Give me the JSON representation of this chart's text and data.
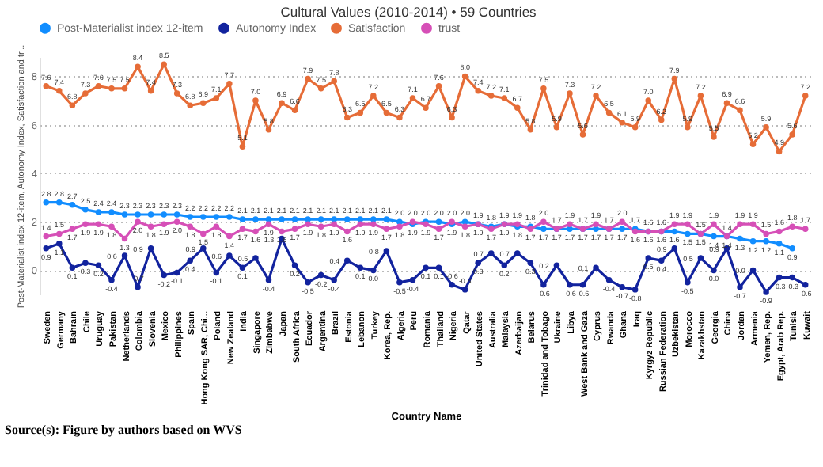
{
  "chart_data": {
    "type": "line",
    "title": "Cultural Values (2010-2014) • 59 Countries",
    "xlabel": "Country Name",
    "ylabel": "Post-Materialist index 12-item, Autonomy Index, Satisfaction and tr...",
    "categories": [
      "Sweden",
      "Germany",
      "Bahrain",
      "Chile",
      "Uruguay",
      "Pakistan",
      "Netherlands",
      "Colombia",
      "Slovenia",
      "Mexico",
      "Philippines",
      "Spain",
      "Hong Kong SAR, Chi...",
      "Poland",
      "New Zealand",
      "India",
      "Singapore",
      "Zimbabwe",
      "Japan",
      "South Africa",
      "Ecuador",
      "Argentina",
      "Brazil",
      "Estonia",
      "Lebanon",
      "Turkey",
      "Korea, Rep.",
      "Algeria",
      "Peru",
      "Romania",
      "Thailand",
      "Nigeria",
      "Qatar",
      "United States",
      "Australia",
      "Malaysia",
      "Azerbaijan",
      "Belarus",
      "Trinidad and Tobago",
      "Ukraine",
      "Libya",
      "West Bank and Gaza",
      "Cyprus",
      "Rwanda",
      "Ghana",
      "Iraq",
      "Kyrgyz Republic",
      "Russian Federation",
      "Uzbekistan",
      "Morocco",
      "Kazakhstan",
      "Georgia",
      "China",
      "Jordan",
      "Armenia",
      "Yemen, Rep.",
      "Egypt, Arab Rep.",
      "Tunisia",
      "Kuwait"
    ],
    "series": [
      {
        "name": "Post-Materialist index 12-item",
        "color": "#118dff",
        "values": [
          2.8,
          2.8,
          2.7,
          2.5,
          2.4,
          2.4,
          2.3,
          2.3,
          2.3,
          2.3,
          2.3,
          2.2,
          2.2,
          2.2,
          2.2,
          2.1,
          2.1,
          2.1,
          2.1,
          2.1,
          2.1,
          2.1,
          2.1,
          2.1,
          2.1,
          2.1,
          2.1,
          2.0,
          1.9,
          2.0,
          2.0,
          1.9,
          2.0,
          1.9,
          1.8,
          1.9,
          1.8,
          1.8,
          1.7,
          1.7,
          1.7,
          1.7,
          1.7,
          1.7,
          1.7,
          1.7,
          1.6,
          1.6,
          1.6,
          1.5,
          1.5,
          1.4,
          1.4,
          1.3,
          1.2,
          1.2,
          1.1,
          0.9,
          null
        ],
        "value_labels": [
          "2.8",
          "2.8",
          "2.7",
          "2.5",
          "2.4",
          "2.4",
          "2.3",
          "2.3",
          "2.3",
          "2.3",
          "2.3",
          "2.2",
          "2.2",
          "2.2",
          "2.2",
          "2.1",
          "2.1",
          "2.1",
          "2.1",
          "2.1",
          "2.1",
          "2.1",
          "2.1",
          "2.1",
          "2.1",
          "2.1",
          "2.1",
          "2.0",
          "1.9",
          "2.0",
          "2.0",
          "1.9",
          "2.0",
          "1.9",
          "1.8",
          "1.9",
          "1.8",
          "1.8",
          "1.7",
          "1.7",
          "1.7",
          "1.7",
          "1.7",
          "1.7",
          "1.7",
          "1.7",
          "1.6",
          "1.6",
          "1.6",
          "1.5",
          "1.5",
          "1.4",
          "1.4",
          "1.3",
          "1.2",
          "1.2",
          "1.1",
          "0.9",
          null
        ]
      },
      {
        "name": "Autonomy Index",
        "color": "#12239e",
        "values": [
          0.9,
          1.1,
          0.1,
          0.3,
          0.2,
          -0.4,
          0.6,
          -0.7,
          0.9,
          -0.2,
          -0.1,
          0.4,
          0.9,
          -0.1,
          0.6,
          0.1,
          0.5,
          -0.4,
          1.3,
          0.2,
          -0.5,
          -0.2,
          -0.4,
          0.4,
          0.1,
          0.0,
          0.8,
          -0.5,
          -0.4,
          0.1,
          0.1,
          -0.6,
          -0.8,
          0.3,
          0.7,
          0.2,
          0.7,
          0.3,
          -0.6,
          0.2,
          -0.6,
          -0.6,
          0.1,
          -0.4,
          -0.7,
          -0.8,
          0.5,
          0.4,
          0.9,
          -0.5,
          0.5,
          0.0,
          0.9,
          -0.7,
          0.0,
          -0.9,
          -0.3,
          -0.3,
          -0.6
        ],
        "value_labels": [
          "0.9",
          "1.1",
          "0.1",
          "0.3",
          "0.2",
          "-0.4",
          "0.6",
          "-0.7",
          "0.9",
          "-0.2",
          "-0.1",
          "0.4",
          "0.9",
          "-0.1",
          "0.6",
          "0.1",
          "0.5",
          "-0.4",
          "1.3",
          "0.2",
          "-0.5",
          "-0.2",
          "-0.4",
          "0.4",
          "0.1",
          "0.0",
          "0.8",
          "-0.5",
          "-0.4",
          "0.1",
          "0.1",
          "-0.6",
          "-0.8",
          "0.3",
          "0.7",
          "0.2",
          "0.7",
          "0.3",
          "-0.6",
          "0.2",
          "-0.6",
          "-0.6",
          "0.1",
          "-0.4",
          "-0.7",
          "-0.8",
          "0.5",
          "0.4",
          "0.9",
          "-0.5",
          "0.5",
          "0.0",
          "0.9",
          "-0.7",
          "0.0",
          "-0.9",
          "-0.3",
          "-0.3",
          "-0.6"
        ]
      },
      {
        "name": "Satisfaction",
        "color": "#e66c37",
        "values": [
          7.6,
          7.4,
          6.8,
          7.3,
          7.6,
          7.5,
          7.5,
          8.4,
          7.4,
          8.5,
          7.3,
          6.8,
          6.9,
          7.1,
          7.7,
          5.1,
          7.0,
          5.8,
          6.9,
          6.6,
          7.9,
          7.5,
          7.8,
          6.3,
          6.5,
          7.2,
          6.5,
          6.3,
          7.1,
          6.7,
          7.6,
          6.3,
          8.0,
          7.4,
          7.2,
          7.1,
          6.7,
          5.8,
          7.5,
          5.9,
          7.3,
          5.6,
          7.2,
          6.5,
          6.1,
          5.9,
          7.0,
          6.2,
          7.9,
          5.9,
          7.2,
          5.5,
          6.9,
          6.6,
          5.2,
          5.9,
          4.9,
          5.6,
          7.2
        ],
        "value_labels": [
          "7.6",
          "7.4",
          "6.8",
          "7.3",
          "7.6",
          "7.5",
          "7.5",
          "8.4",
          "7.4",
          "8.5",
          "7.3",
          "6.8",
          "6.9",
          "7.1",
          "7.7",
          "5.1",
          "7.0",
          "5.8",
          "6.9",
          "6.6",
          "7.9",
          "7.5",
          "7.8",
          "6.3",
          "6.5",
          "7.2",
          "6.5",
          "6.3",
          "7.1",
          "6.7",
          "7.6",
          "6.3",
          "8.0",
          "7.4",
          "7.2",
          "7.1",
          "6.7",
          "5.8",
          "7.5",
          "5.9",
          "7.3",
          "5.6",
          "7.2",
          "6.5",
          "6.1",
          "5.9",
          "7.0",
          "6.2",
          "7.9",
          "5.9",
          "7.2",
          "5.5",
          "6.9",
          "6.6",
          "5.2",
          "5.9",
          "4.9",
          "5.6",
          "7.2"
        ]
      },
      {
        "name": "trust",
        "color": "#d64fb7",
        "values": [
          1.4,
          1.5,
          1.7,
          1.9,
          1.9,
          1.8,
          1.3,
          2.0,
          1.8,
          1.9,
          2.0,
          1.8,
          1.5,
          1.8,
          1.4,
          1.7,
          1.6,
          1.9,
          1.6,
          1.7,
          1.9,
          1.8,
          1.9,
          1.6,
          1.9,
          1.9,
          1.7,
          1.8,
          2.0,
          1.9,
          1.7,
          2.0,
          1.8,
          1.9,
          1.7,
          1.9,
          1.9,
          1.7,
          2.0,
          1.7,
          1.9,
          1.7,
          1.9,
          1.7,
          2.0,
          1.6,
          1.6,
          1.6,
          1.9,
          1.9,
          1.5,
          1.9,
          1.4,
          1.9,
          1.9,
          1.5,
          1.6,
          1.8,
          1.7
        ],
        "value_labels": [
          "1.4",
          "1.5",
          "1.7",
          "1.9",
          "1.9",
          "1.8",
          "1.3",
          "2.0",
          "1.8",
          "1.9",
          "2.0",
          "1.8",
          "1.5",
          "1.8",
          "1.4",
          "1.7",
          "1.6",
          "1.9",
          "1.6",
          "1.7",
          "1.9",
          "1.8",
          "1.9",
          "1.6",
          "1.9",
          "1.9",
          "1.7",
          "1.8",
          "2.0",
          "1.9",
          "1.7",
          "2.0",
          "1.8",
          "1.9",
          "1.7",
          "1.9",
          "1.9",
          "1.7",
          "2.0",
          "1.7",
          "1.9",
          "1.7",
          "1.9",
          "1.7",
          "2.0",
          "1.6",
          "1.6",
          "1.6",
          "1.9",
          "1.9",
          "1.5",
          "1.9",
          "1.4",
          "1.9",
          "1.9",
          "1.5",
          "1.6",
          "1.8",
          "1.7"
        ]
      }
    ],
    "ylim": [
      -1,
      8.8
    ],
    "yticks": [
      0,
      2,
      4,
      6,
      8
    ],
    "grid": "y",
    "legend": "top",
    "marker": "circle",
    "annotations": [
      "Source(s): Figure by authors based on WVS"
    ]
  }
}
